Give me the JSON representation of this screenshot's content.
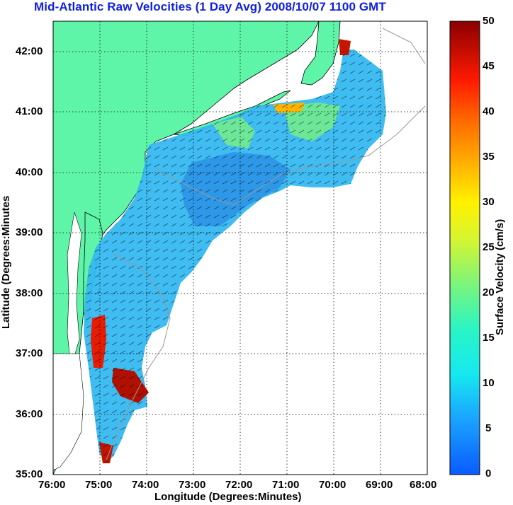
{
  "title": "Mid-Atlantic Raw Velocities (1 Day Avg) 2008/10/07 1100 GMT",
  "map": {
    "xlabel": "Longitude (Degrees:Minutes)",
    "ylabel": "Latitude (Degrees:Minutes",
    "x_ticks": [
      "76:00",
      "75:00",
      "74:00",
      "73:00",
      "72:00",
      "71:00",
      "70:00",
      "69:00",
      "68:00"
    ],
    "y_ticks": [
      "42:00",
      "41:00",
      "40:00",
      "39:00",
      "38:00",
      "37:00",
      "36:00",
      "35:00"
    ],
    "land_color": "#5ff5a8",
    "grid": "dotted"
  },
  "colorbar": {
    "label": "Surface Velocity (cm/s)",
    "ticks": [
      "50",
      "45",
      "40",
      "35",
      "30",
      "25",
      "20",
      "15",
      "10",
      "5",
      "0"
    ],
    "min": 0,
    "max": 50
  }
}
